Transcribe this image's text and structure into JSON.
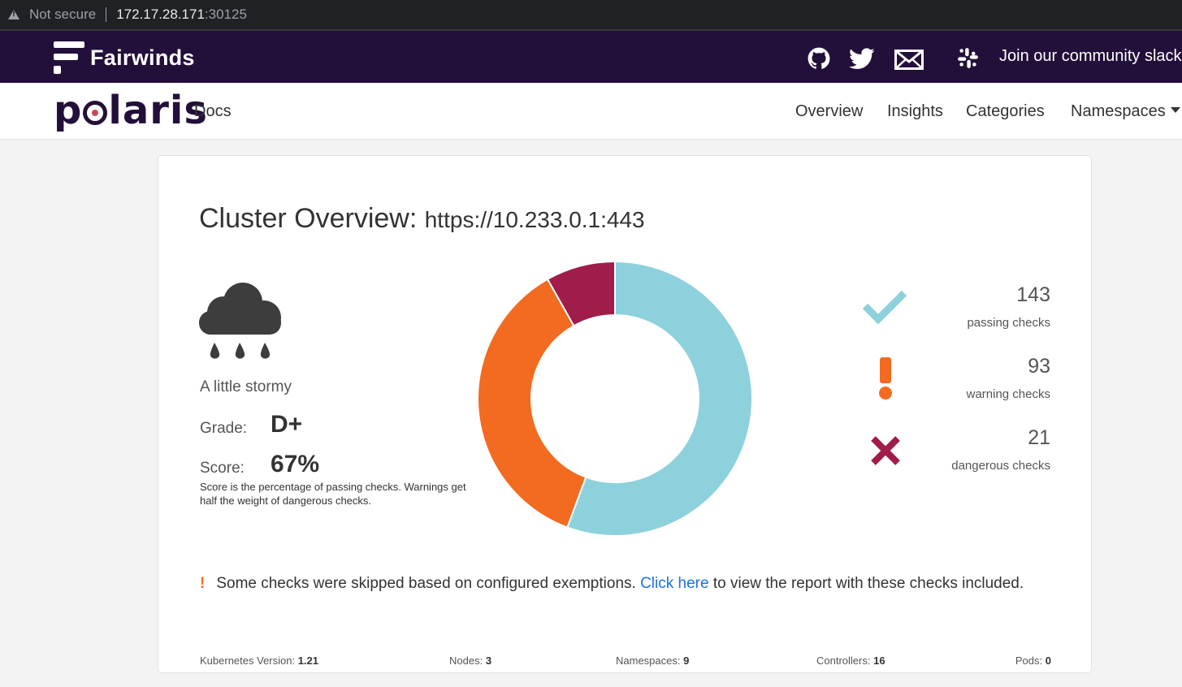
{
  "browser": {
    "security_label": "Not secure",
    "host": "172.17.28.171",
    "port": ":30125"
  },
  "fairwinds": {
    "brand": "Fairwinds",
    "slack_label": "Join our community slack",
    "icons": [
      "github-icon",
      "twitter-icon",
      "mail-icon",
      "slack-icon"
    ]
  },
  "nav": {
    "logo": "polaris",
    "docs": "Docs",
    "links": {
      "overview": "Overview",
      "insights": "Insights",
      "categories": "Categories",
      "namespaces": "Namespaces"
    }
  },
  "overview": {
    "title": "Cluster Overview:",
    "cluster_url": "https://10.233.0.1:443",
    "weather_label": "A little stormy",
    "grade_label": "Grade:",
    "grade": "D+",
    "score_label": "Score:",
    "score": "67%",
    "score_note": "Score is the percentage of passing checks. Warnings get half the weight of dangerous checks."
  },
  "checks": {
    "passing": {
      "count": "143",
      "label": "passing checks",
      "color": "#8dd1dc"
    },
    "warning": {
      "count": "93",
      "label": "warning checks",
      "color": "#f26b21"
    },
    "dangerous": {
      "count": "21",
      "label": "dangerous checks",
      "color": "#a01c4b"
    }
  },
  "chart_data": {
    "type": "pie",
    "categories": [
      "passing",
      "warning",
      "dangerous"
    ],
    "values": [
      143,
      93,
      21
    ],
    "colors": [
      "#8dd1dc",
      "#f26b21",
      "#a01c4b"
    ]
  },
  "exemption": {
    "bang": "!",
    "before": "Some checks were skipped based on configured exemptions.",
    "link": "Click here",
    "after": "to view the report with these checks included."
  },
  "stats": {
    "k8s_label": "Kubernetes Version:",
    "k8s": "1.21",
    "nodes_label": "Nodes:",
    "nodes": "3",
    "ns_label": "Namespaces:",
    "ns": "9",
    "ctrl_label": "Controllers:",
    "ctrl": "16",
    "pods_label": "Pods:",
    "pods": "0"
  }
}
